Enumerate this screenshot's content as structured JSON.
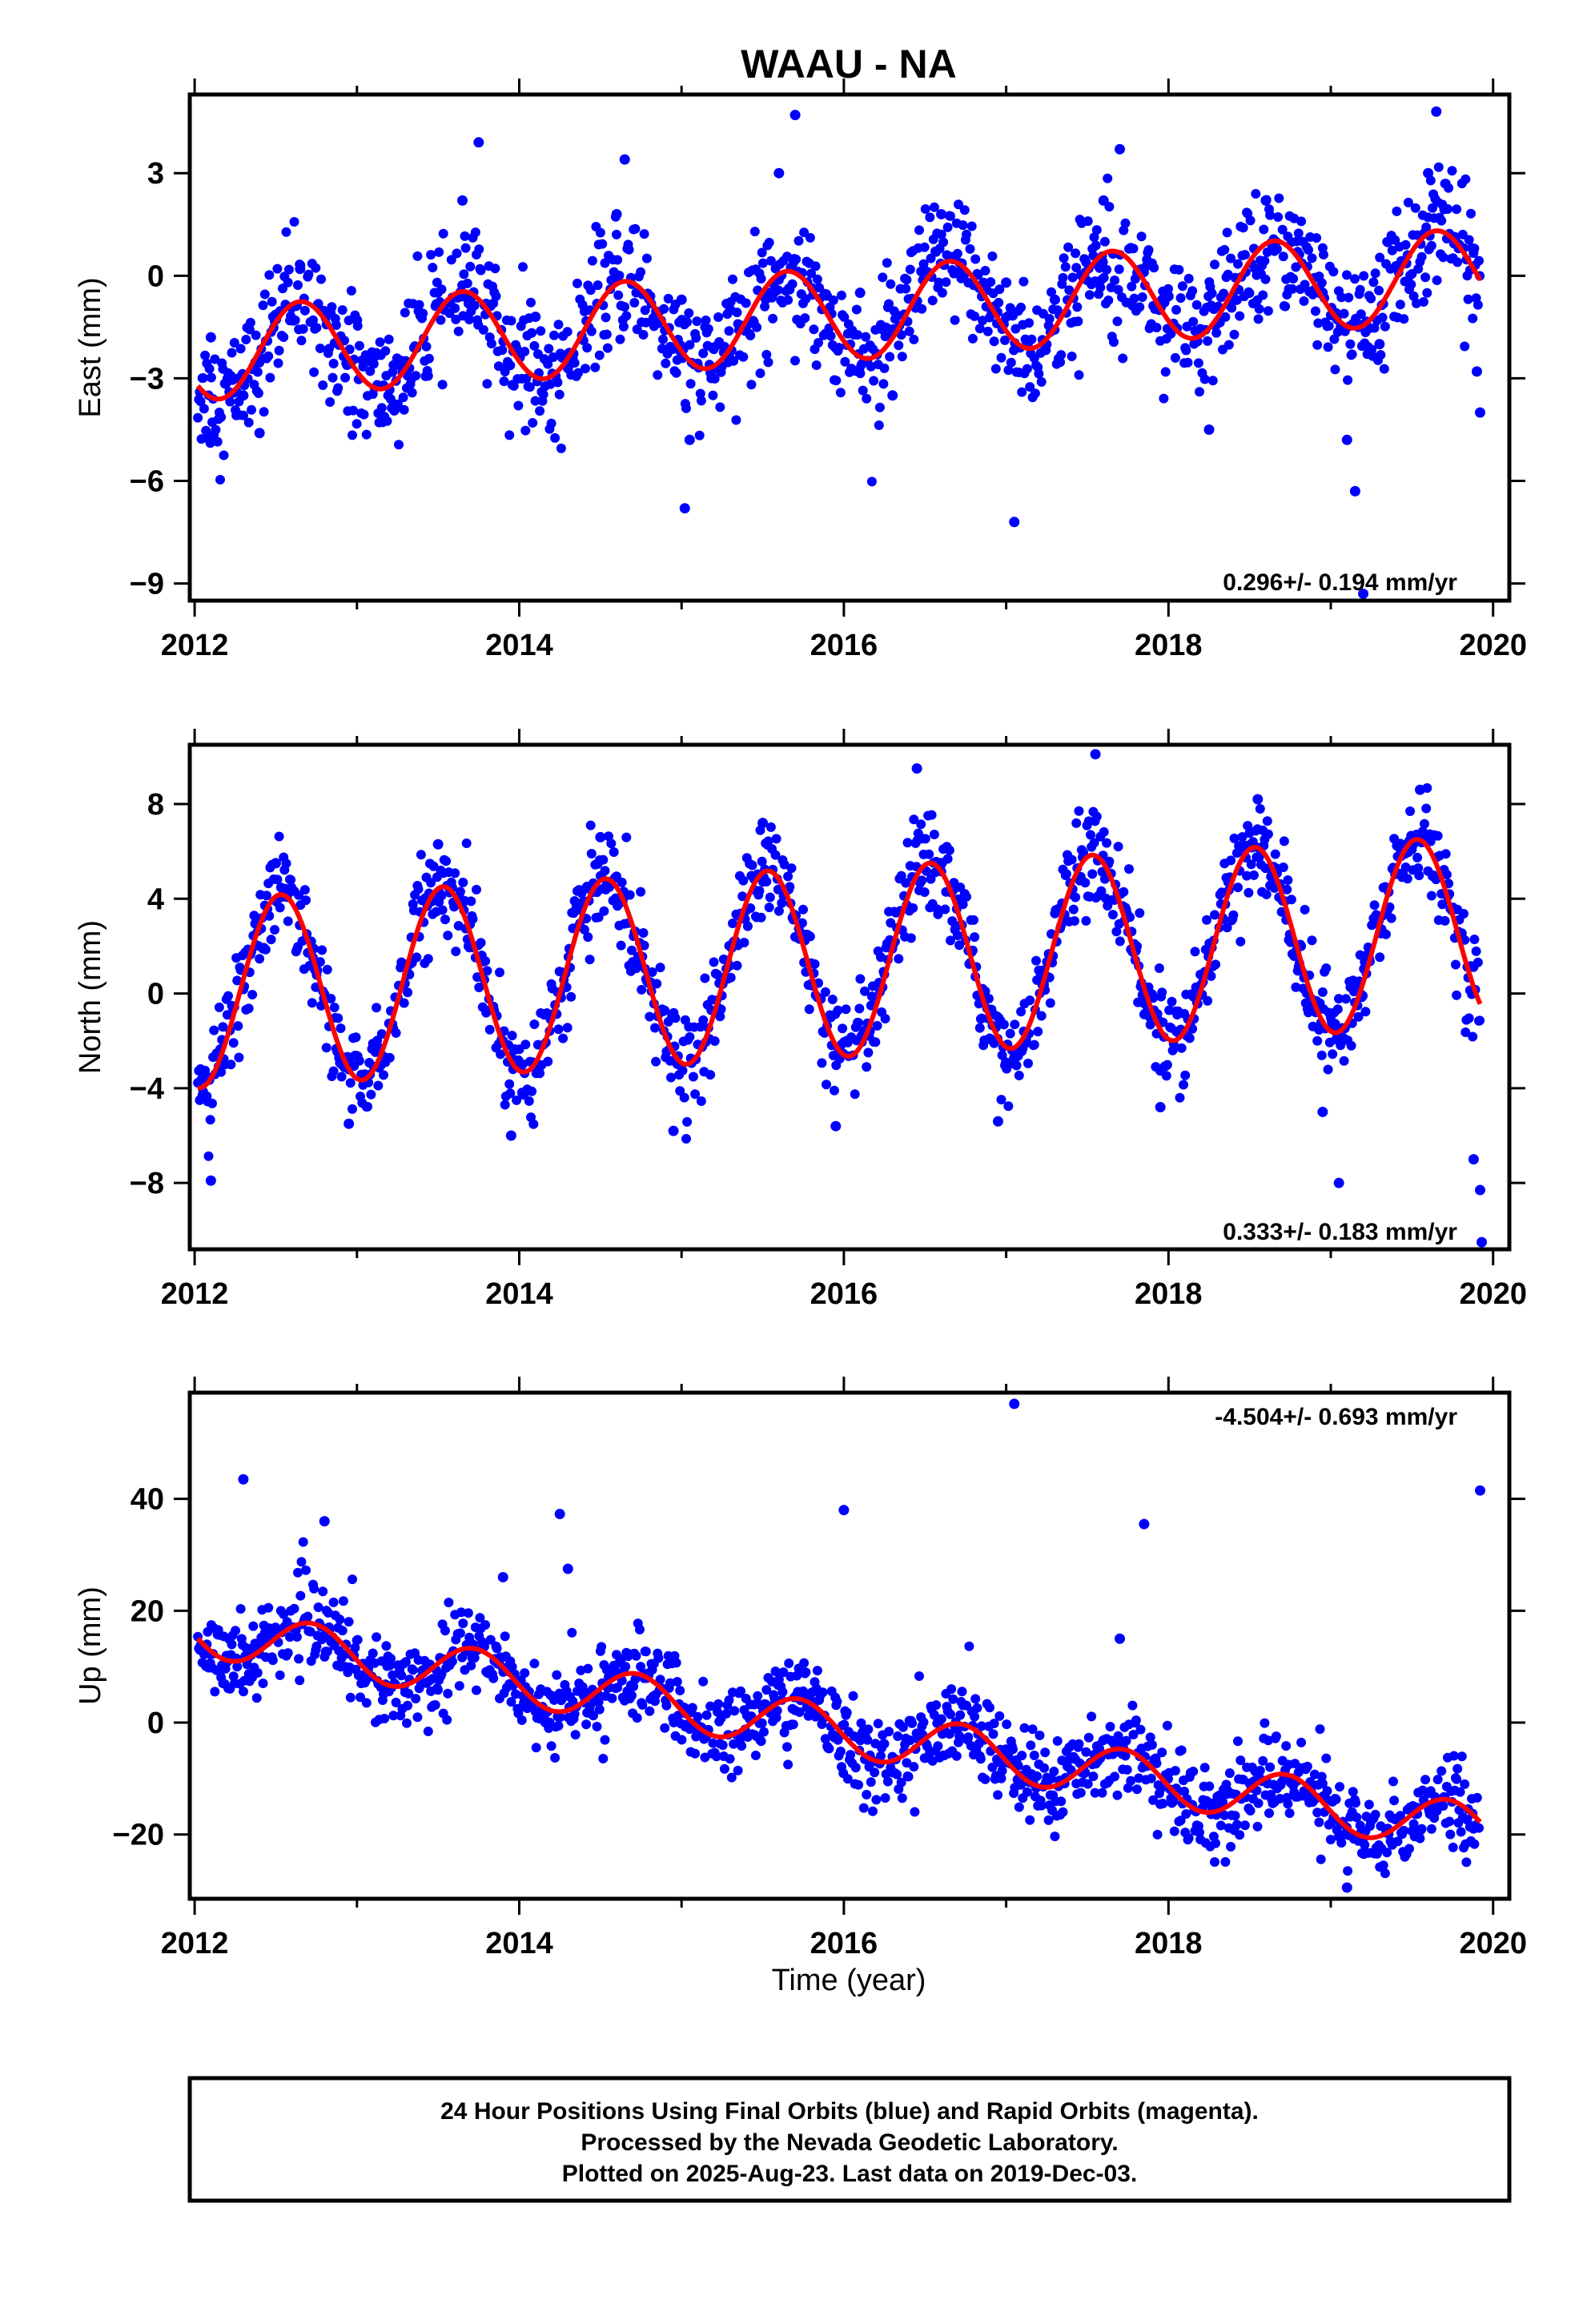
{
  "chart_data": [
    {
      "type": "scatter",
      "title": "WAAU - NA",
      "xlabel": "",
      "ylabel": "East (mm)",
      "xlim": [
        2011.97,
        2020.1
      ],
      "ylim": [
        -9.5,
        5.3
      ],
      "xticks": [
        2012,
        2014,
        2016,
        2018,
        2020
      ],
      "yticks": [
        -9,
        -6,
        -3,
        0,
        3
      ],
      "rate": "0.296+/- 0.194 mm/yr",
      "colors": {
        "points": "#0000ff",
        "fit": "#ff0000"
      },
      "model": {
        "trend": 0.296,
        "annual_amp": 1.35,
        "annual_peak": 0.65,
        "semiannual_amp": 0.0,
        "intercept_2012": -2.3
      },
      "series": [
        {
          "values": [
            [
              2012.1,
              -1.8
            ],
            [
              2012.3,
              -3.5
            ],
            [
              2012.4,
              -4.6
            ],
            [
              2012.65,
              0.2
            ],
            [
              2013.0,
              -1.3
            ],
            [
              2013.3,
              -2.5
            ],
            [
              2013.65,
              2.2
            ],
            [
              2013.75,
              3.9
            ],
            [
              2014.1,
              -1.2
            ],
            [
              2014.3,
              -2.7
            ],
            [
              2014.6,
              1.8
            ],
            [
              2014.65,
              3.4
            ],
            [
              2015.0,
              -0.7
            ],
            [
              2015.02,
              -6.8
            ],
            [
              2015.05,
              -4.8
            ],
            [
              2015.3,
              -1.0
            ],
            [
              2015.6,
              3.0
            ],
            [
              2015.7,
              4.7
            ],
            [
              2016.1,
              -0.5
            ],
            [
              2016.3,
              -3.5
            ],
            [
              2016.6,
              1.8
            ],
            [
              2017.0,
              -0.2
            ],
            [
              2017.05,
              -7.2
            ],
            [
              2017.3,
              -0.7
            ],
            [
              2017.6,
              2.2
            ],
            [
              2017.7,
              3.7
            ],
            [
              2018.0,
              -0.6
            ],
            [
              2018.25,
              -4.5
            ],
            [
              2018.6,
              2.2
            ],
            [
              2018.95,
              -0.5
            ],
            [
              2019.1,
              -4.8
            ],
            [
              2019.15,
              -6.3
            ],
            [
              2019.2,
              -9.3
            ],
            [
              2019.3,
              -2.0
            ],
            [
              2019.6,
              3.0
            ],
            [
              2019.65,
              4.8
            ],
            [
              2019.9,
              -2.8
            ],
            [
              2019.92,
              -4.0
            ]
          ]
        }
      ]
    },
    {
      "type": "scatter",
      "title": "",
      "xlabel": "",
      "ylabel": "North (mm)",
      "xlim": [
        2011.97,
        2020.1
      ],
      "ylim": [
        -10.8,
        10.5
      ],
      "xticks": [
        2012,
        2014,
        2016,
        2018,
        2020
      ],
      "yticks": [
        -8,
        -4,
        0,
        4,
        8
      ],
      "rate": "0.333+/- 0.183 mm/yr",
      "colors": {
        "points": "#0000ff",
        "fit": "#ff0000"
      },
      "model": {
        "trend": 0.333,
        "annual_amp": 4.0,
        "annual_peak": 0.53,
        "semiannual_amp": 0.0,
        "intercept_2012": 0.0
      },
      "series": [
        {
          "values": [
            [
              2012.05,
              -4.3
            ],
            [
              2012.1,
              -7.9
            ],
            [
              2012.5,
              5.5
            ],
            [
              2012.95,
              -5.5
            ],
            [
              2013.5,
              6.3
            ],
            [
              2013.95,
              -6.0
            ],
            [
              2014.5,
              6.6
            ],
            [
              2014.95,
              -5.8
            ],
            [
              2015.5,
              7.2
            ],
            [
              2015.95,
              -5.6
            ],
            [
              2016.45,
              9.5
            ],
            [
              2016.95,
              -5.4
            ],
            [
              2017.55,
              10.1
            ],
            [
              2017.95,
              -4.8
            ],
            [
              2018.55,
              8.2
            ],
            [
              2018.95,
              -5.0
            ],
            [
              2019.05,
              -8.0
            ],
            [
              2019.55,
              8.6
            ],
            [
              2019.88,
              -7.0
            ],
            [
              2019.92,
              -8.3
            ],
            [
              2019.93,
              -10.5
            ]
          ]
        }
      ]
    },
    {
      "type": "scatter",
      "title": "",
      "xlabel": "Time (year)",
      "ylabel": "Up (mm)",
      "xlim": [
        2011.97,
        2020.1
      ],
      "ylim": [
        -31.5,
        59.0
      ],
      "xticks": [
        2012,
        2014,
        2016,
        2018,
        2020
      ],
      "yticks": [
        -20,
        0,
        20,
        40
      ],
      "rate": "-4.504+/- 0.693 mm/yr",
      "colors": {
        "points": "#0000ff",
        "fit": "#ff0000"
      },
      "model": {
        "trend": -4.504,
        "annual_amp": 4.5,
        "annual_peak": 0.72,
        "semiannual_amp": 0.0,
        "intercept_2012": 16.5
      },
      "series": [
        {
          "values": [
            [
              2012.3,
              43.5
            ],
            [
              2012.8,
              36.0
            ],
            [
              2014.25,
              37.3
            ],
            [
              2016.0,
              38.0
            ],
            [
              2017.05,
              57.0
            ],
            [
              2017.85,
              35.5
            ],
            [
              2019.92,
              41.5
            ],
            [
              2019.1,
              -29.5
            ],
            [
              2014.3,
              27.5
            ],
            [
              2013.9,
              26.0
            ],
            [
              2017.7,
              15.0
            ]
          ]
        }
      ]
    }
  ],
  "footer": {
    "lines": [
      "24 Hour Positions Using Final Orbits (blue) and Rapid Orbits (magenta).",
      "Processed by the Nevada Geodetic Laboratory.",
      "Plotted on 2025-Aug-23. Last data on 2019-Dec-03."
    ]
  }
}
